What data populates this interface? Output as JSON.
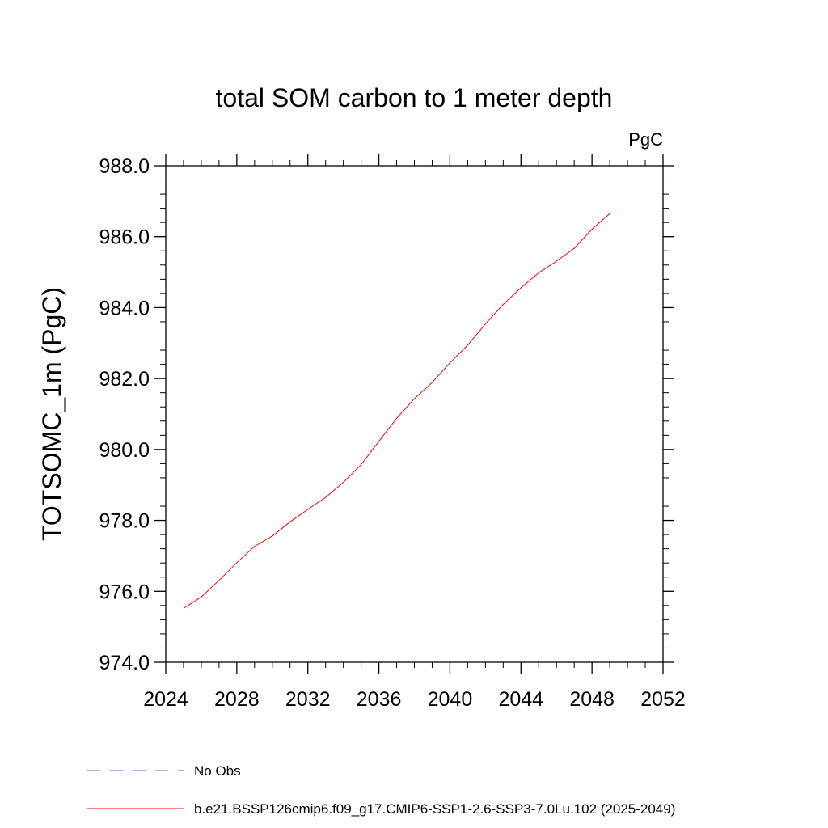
{
  "chart_data": {
    "type": "line",
    "title": "total SOM carbon to 1 meter depth",
    "units_label": "PgC",
    "ylabel": "TOTSOMC_1m  (PgC)",
    "xlabel": "",
    "xlim": [
      2024,
      2052
    ],
    "ylim": [
      974.0,
      988.0
    ],
    "x_ticks": [
      2024,
      2028,
      2032,
      2036,
      2040,
      2044,
      2048,
      2052
    ],
    "x_tick_labels": [
      "2024",
      "2028",
      "2032",
      "2036",
      "2040",
      "2044",
      "2048",
      "2052"
    ],
    "y_ticks": [
      974,
      976,
      978,
      980,
      982,
      984,
      986,
      988
    ],
    "y_tick_labels": [
      "974.0",
      "976.0",
      "978.0",
      "980.0",
      "982.0",
      "984.0",
      "986.0",
      "988.0"
    ],
    "grid": false,
    "series": [
      {
        "name": "b.e21.BSSP126cmip6.f09_g17.CMIP6-SSP1-2.6-SSP3-7.0Lu.102 (2025-2049)",
        "color": "#ff0000",
        "style": "solid",
        "x": [
          2025,
          2026,
          2027,
          2028,
          2029,
          2030,
          2031,
          2032,
          2033,
          2034,
          2035,
          2036,
          2037,
          2038,
          2039,
          2040,
          2041,
          2042,
          2043,
          2044,
          2045,
          2046,
          2047,
          2048,
          2049
        ],
        "values": [
          975.52,
          975.84,
          976.31,
          976.81,
          977.27,
          977.56,
          977.96,
          978.31,
          978.65,
          979.07,
          979.57,
          980.23,
          980.88,
          981.43,
          981.89,
          982.44,
          982.94,
          983.54,
          984.09,
          984.56,
          984.98,
          985.31,
          985.67,
          986.21,
          986.65
        ]
      }
    ],
    "legend": [
      {
        "label": "No Obs",
        "color": "#6a5acd",
        "style": "dashed"
      },
      {
        "label": "b.e21.BSSP126cmip6.f09_g17.CMIP6-SSP1-2.6-SSP3-7.0Lu.102 (2025-2049)",
        "color": "#ff0000",
        "style": "solid"
      }
    ],
    "legend_position": "bottom"
  }
}
